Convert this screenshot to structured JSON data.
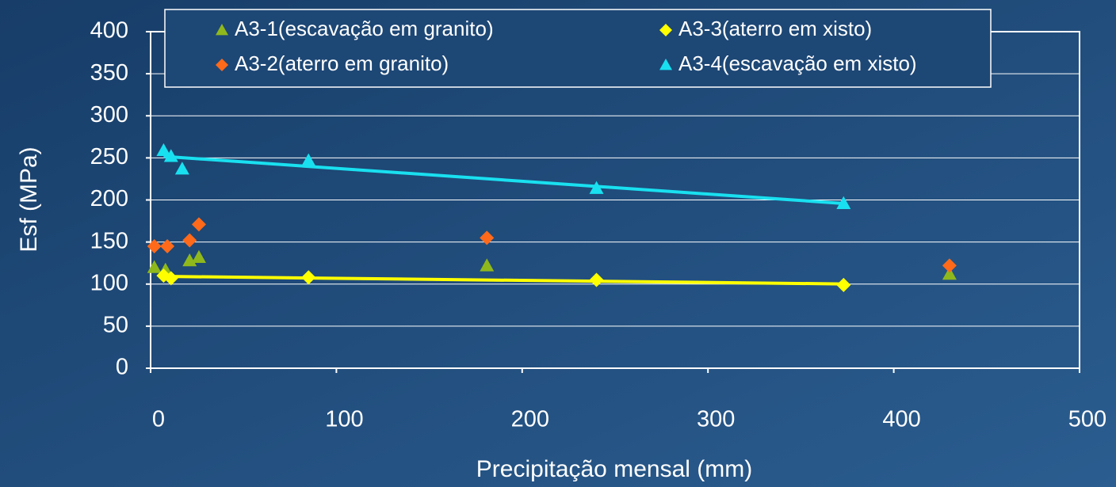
{
  "chart_data": {
    "type": "scatter",
    "x_label": "Precipitação mensal (mm)",
    "y_label": "Esf (MPa)",
    "xlim": [
      0,
      500
    ],
    "xticks": [
      0,
      100,
      200,
      300,
      400,
      500
    ],
    "ylim": [
      0,
      400
    ],
    "yticks": [
      0,
      50,
      100,
      150,
      200,
      250,
      300,
      350,
      400
    ],
    "grid": true,
    "legend": "top",
    "series": [
      {
        "name": "A3-1(escavação em granito)",
        "color": "#8fb81c",
        "marker": "triangle",
        "x": [
          2,
          8,
          21,
          26,
          181,
          430
        ],
        "values": [
          120,
          117,
          128,
          132,
          122,
          112
        ]
      },
      {
        "name": "A3-3(aterro em xisto)",
        "color": "#ffff00",
        "marker": "diamond",
        "trendline": "linear",
        "x": [
          7,
          11,
          85,
          240,
          373
        ],
        "values": [
          110,
          107,
          108,
          105,
          99
        ]
      },
      {
        "name": "A3-2(aterro em granito)",
        "color": "#ff6a1a",
        "marker": "diamond",
        "x": [
          2,
          9,
          21,
          26,
          181,
          430
        ],
        "values": [
          145,
          145,
          152,
          171,
          155,
          122
        ]
      },
      {
        "name": "A3-4(escavação em xisto)",
        "color": "#19e0f0",
        "marker": "triangle",
        "trendline": "linear",
        "x": [
          7,
          11,
          17,
          85,
          240,
          373
        ],
        "values": [
          259,
          252,
          237,
          247,
          214,
          196
        ]
      }
    ]
  }
}
